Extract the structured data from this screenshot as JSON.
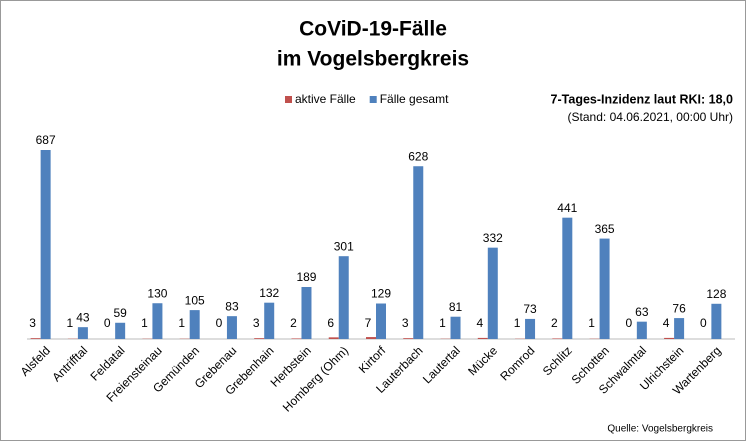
{
  "chart_data": {
    "type": "bar",
    "title": "CoViD-19-Fälle",
    "subtitle": "im Vogelsbergkreis",
    "annotations": [
      "7-Tages-Inzidenz laut RKI: 18,0",
      "(Stand: 04.06.2021, 00:00 Uhr)",
      "Quelle: Vogelsbergkreis"
    ],
    "categories": [
      "Alsfeld",
      "Antrifftal",
      "Feldatal",
      "Freiensteinau",
      "Gemünden",
      "Grebenau",
      "Grebenhain",
      "Herbstein",
      "Homberg (Ohm)",
      "Kirtorf",
      "Lauterbach",
      "Lautertal",
      "Mücke",
      "Romrod",
      "Schlitz",
      "Schotten",
      "Schwalmtal",
      "Ulrichstein",
      "Wartenberg"
    ],
    "series": [
      {
        "name": "aktive Fälle",
        "color": "#c0504d",
        "values": [
          3,
          1,
          0,
          1,
          1,
          0,
          3,
          2,
          6,
          7,
          3,
          1,
          4,
          1,
          2,
          1,
          0,
          4,
          0
        ]
      },
      {
        "name": "Fälle gesamt",
        "color": "#4f81bd",
        "values": [
          687,
          43,
          59,
          130,
          105,
          83,
          132,
          189,
          301,
          129,
          628,
          81,
          332,
          73,
          441,
          365,
          63,
          76,
          128
        ]
      }
    ],
    "legend": "top"
  }
}
